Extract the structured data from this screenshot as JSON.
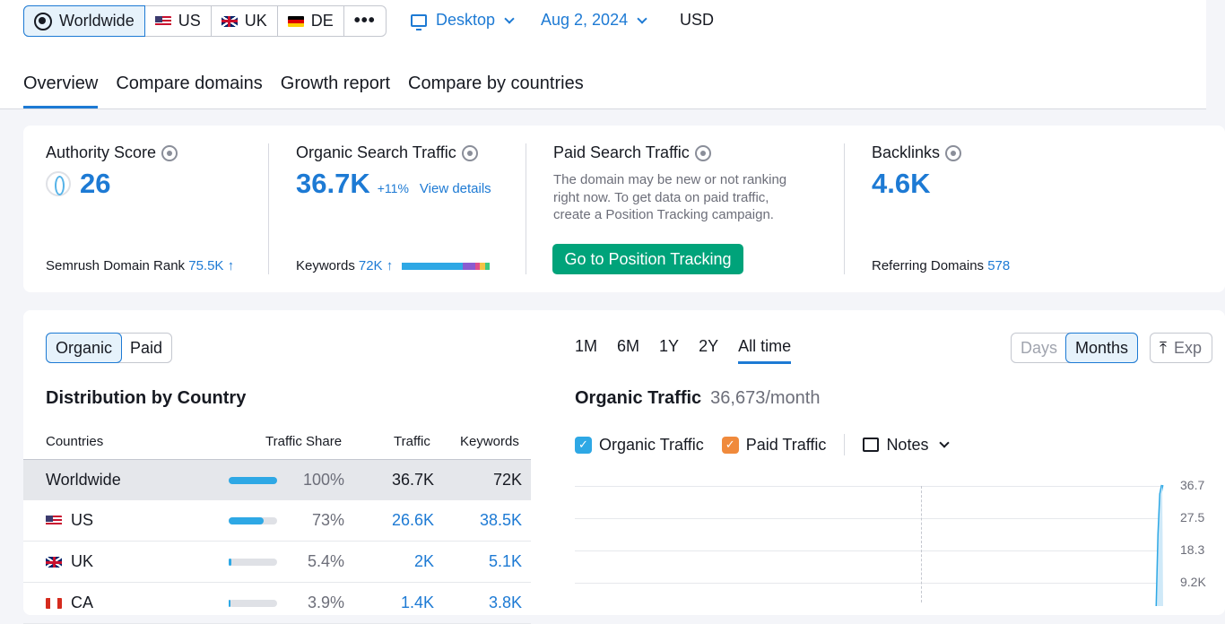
{
  "database_selector": {
    "items": [
      {
        "label": "Worldwide",
        "icon": "globe-icon",
        "active": true
      },
      {
        "label": "US",
        "icon": "flag-us-icon"
      },
      {
        "label": "UK",
        "icon": "flag-uk-icon"
      },
      {
        "label": "DE",
        "icon": "flag-de-icon"
      }
    ],
    "more": "•••"
  },
  "device": "Desktop",
  "date": "Aug 2, 2024",
  "currency": "USD",
  "tabs": [
    "Overview",
    "Compare domains",
    "Growth report",
    "Compare by countries"
  ],
  "metrics": {
    "authority": {
      "title": "Authority Score",
      "value": "26",
      "footer_label": "Semrush Domain Rank",
      "footer_value": "75.5K ↑"
    },
    "organic": {
      "title": "Organic Search Traffic",
      "value": "36.7K",
      "change": "+11%",
      "link": "View details",
      "footer_label": "Keywords",
      "footer_value": "72K ↑",
      "keyword_bar": [
        {
          "share": 0.69,
          "color": "#2ea8e5"
        },
        {
          "share": 0.14,
          "color": "#8a5cd1"
        },
        {
          "share": 0.06,
          "color": "#e04f8a"
        },
        {
          "share": 0.06,
          "color": "#f5c245"
        },
        {
          "share": 0.05,
          "color": "#3fc97f"
        }
      ]
    },
    "paid": {
      "title": "Paid Search Traffic",
      "message_1": "The domain may be new or not ranking",
      "message_2": "right now. To get data on paid traffic,",
      "message_3": "create a Position Tracking campaign.",
      "button": "Go to Position Tracking"
    },
    "backlinks": {
      "title": "Backlinks",
      "value": "4.6K",
      "footer_label": "Referring Domains",
      "footer_value": "578"
    }
  },
  "main": {
    "traffic_type": [
      "Organic",
      "Paid"
    ],
    "distribution_title": "Distribution by Country",
    "columns": [
      "Countries",
      "Traffic Share",
      "Traffic",
      "Keywords"
    ],
    "rows": [
      {
        "country": "Worldwide",
        "flag": "",
        "share_label": "100%",
        "share": 1.0,
        "traffic": "36.7K",
        "keywords": "72K",
        "selected": true
      },
      {
        "country": "US",
        "flag": "flag-us",
        "share_label": "73%",
        "share": 0.73,
        "traffic": "26.6K",
        "keywords": "38.5K"
      },
      {
        "country": "UK",
        "flag": "flag-uk",
        "share_label": "5.4%",
        "share": 0.054,
        "traffic": "2K",
        "keywords": "5.1K"
      },
      {
        "country": "CA",
        "flag": "flag-ca",
        "share_label": "3.9%",
        "share": 0.039,
        "traffic": "1.4K",
        "keywords": "3.8K"
      }
    ],
    "periods": [
      "1M",
      "6M",
      "1Y",
      "2Y",
      "All time"
    ],
    "active_period": "All time",
    "granularity": [
      "Days",
      "Months"
    ],
    "export": "Exp",
    "chart_title": "Organic Traffic",
    "chart_subtitle": "36,673/month",
    "legend": [
      {
        "label": "Organic Traffic",
        "color": "#2ea8e5"
      },
      {
        "label": "Paid Traffic",
        "color": "#f08a3c"
      }
    ],
    "notes": "Notes",
    "y_ticks": [
      "36.7",
      "27.5",
      "18.3",
      "9.2K"
    ]
  }
}
